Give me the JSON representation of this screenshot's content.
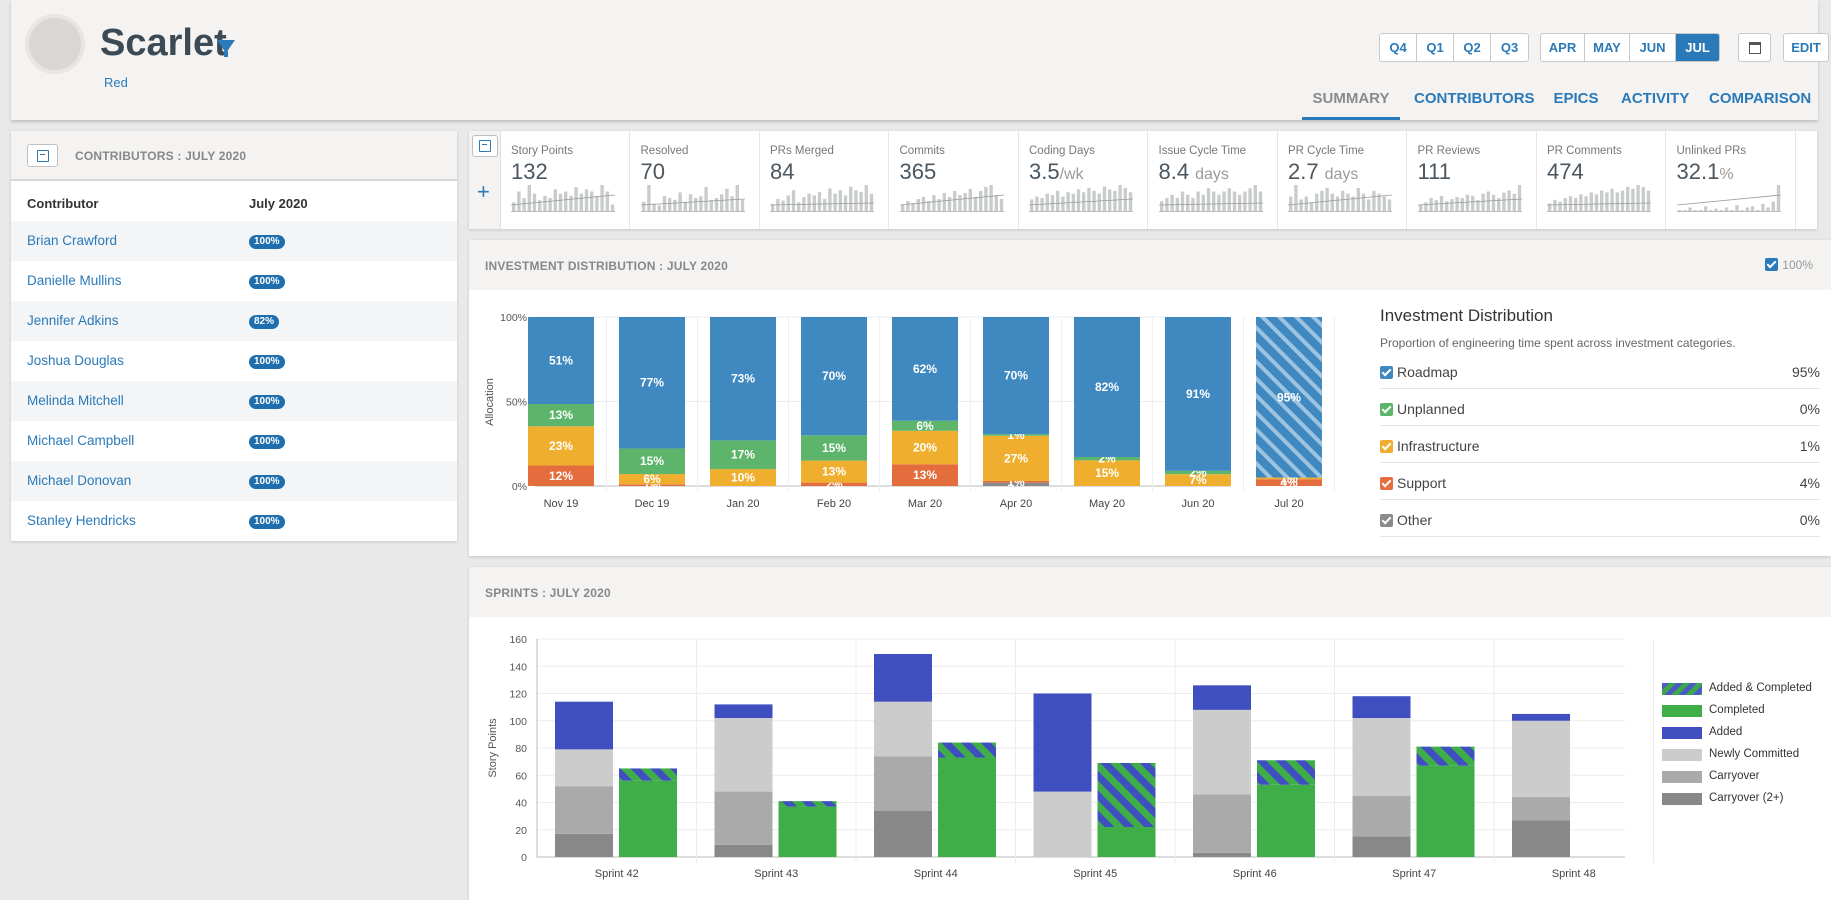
{
  "header": {
    "team_name": "Scarlet",
    "team_sub": "Red",
    "quarters": [
      "Q4",
      "Q1",
      "Q2",
      "Q3"
    ],
    "months": [
      "APR",
      "MAY",
      "JUN",
      "JUL"
    ],
    "active_month": "JUL",
    "edit_label": "EDIT",
    "tabs": [
      "SUMMARY",
      "CONTRIBUTORS",
      "EPICS",
      "ACTIVITY",
      "COMPARISON"
    ],
    "active_tab": "SUMMARY"
  },
  "contributors": {
    "title": "CONTRIBUTORS : JULY 2020",
    "col_name": "Contributor",
    "col_month": "July 2020",
    "rows": [
      {
        "name": "Brian Crawford",
        "pct": "100%"
      },
      {
        "name": "Danielle Mullins",
        "pct": "100%"
      },
      {
        "name": "Jennifer Adkins",
        "pct": "82%"
      },
      {
        "name": "Joshua Douglas",
        "pct": "100%"
      },
      {
        "name": "Melinda Mitchell",
        "pct": "100%"
      },
      {
        "name": "Michael Campbell",
        "pct": "100%"
      },
      {
        "name": "Michael Donovan",
        "pct": "100%"
      },
      {
        "name": "Stanley Hendricks",
        "pct": "100%"
      }
    ]
  },
  "metrics": [
    {
      "label": "Story Points",
      "value": "132",
      "unit": ""
    },
    {
      "label": "Resolved",
      "value": "70",
      "unit": ""
    },
    {
      "label": "PRs Merged",
      "value": "84",
      "unit": ""
    },
    {
      "label": "Commits",
      "value": "365",
      "unit": ""
    },
    {
      "label": "Coding Days",
      "value": "3.5",
      "unit": "/wk"
    },
    {
      "label": "Issue Cycle Time",
      "value": "8.4",
      "unit": "days"
    },
    {
      "label": "PR Cycle Time",
      "value": "2.7",
      "unit": "days"
    },
    {
      "label": "PR Reviews",
      "value": "111",
      "unit": ""
    },
    {
      "label": "PR Comments",
      "value": "474",
      "unit": ""
    },
    {
      "label": "Unlinked PRs",
      "value": "32.1",
      "unit": "%"
    }
  ],
  "investment": {
    "title": "INVESTMENT DISTRIBUTION : JULY 2020",
    "toggle_label": "100%",
    "legend_title": "Investment Distribution",
    "legend_sub": "Proportion of engineering time spent across investment categories.",
    "legend": [
      {
        "name": "Roadmap",
        "value": "95%",
        "color": "#3f88c0"
      },
      {
        "name": "Unplanned",
        "value": "0%",
        "color": "#5cb56a"
      },
      {
        "name": "Infrastructure",
        "value": "1%",
        "color": "#efae2e"
      },
      {
        "name": "Support",
        "value": "4%",
        "color": "#e36d3c"
      },
      {
        "name": "Other",
        "value": "0%",
        "color": "#8a8a8a"
      }
    ]
  },
  "sprints": {
    "title": "SPRINTS : JULY 2020",
    "legend": [
      {
        "name": "Added & Completed",
        "color": "hatch"
      },
      {
        "name": "Completed",
        "color": "#3fae49"
      },
      {
        "name": "Added",
        "color": "#3f4fbf"
      },
      {
        "name": "Newly Committed",
        "color": "#cccccc"
      },
      {
        "name": "Carryover",
        "color": "#aaaaaa"
      },
      {
        "name": "Carryover (2+)",
        "color": "#888888"
      }
    ]
  },
  "chart_data": [
    {
      "type": "bar",
      "stacked": true,
      "title": "INVESTMENT DISTRIBUTION : JULY 2020",
      "ylabel": "Allocation",
      "ylim": [
        0,
        100
      ],
      "yticks": [
        "0%",
        "50%",
        "100%"
      ],
      "categories": [
        "Nov 19",
        "Dec 19",
        "Jan 20",
        "Feb 20",
        "Mar 20",
        "Apr 20",
        "May 20",
        "Jun 20",
        "Jul 20"
      ],
      "series": [
        {
          "name": "Other",
          "color": "#8a8a8a",
          "values": [
            0,
            0,
            0,
            0,
            0,
            2,
            0,
            0,
            0
          ]
        },
        {
          "name": "Support",
          "color": "#e36d3c",
          "values": [
            12,
            1,
            0,
            2,
            13,
            1,
            0,
            0,
            4
          ]
        },
        {
          "name": "Infrastructure",
          "color": "#efae2e",
          "values": [
            23,
            6,
            10,
            13,
            20,
            27,
            15,
            7,
            1
          ]
        },
        {
          "name": "Unplanned",
          "color": "#5cb56a",
          "values": [
            13,
            15,
            17,
            15,
            6,
            1,
            2,
            2,
            0
          ]
        },
        {
          "name": "Roadmap",
          "color": "#3f88c0",
          "values": [
            51,
            77,
            73,
            70,
            62,
            70,
            82,
            91,
            95
          ]
        }
      ],
      "labels": [
        [
          "",
          "12%",
          "23%",
          "13%",
          "51%"
        ],
        [
          "",
          "1%",
          "6%",
          "15%",
          "77%"
        ],
        [
          "",
          "",
          "10%",
          "17%",
          "73%"
        ],
        [
          "",
          "2%",
          "13%",
          "15%",
          "70%"
        ],
        [
          "",
          "13%",
          "20%",
          "6%",
          "62%"
        ],
        [
          "",
          "1%",
          "27%",
          "1%",
          "70%"
        ],
        [
          "",
          "",
          "15%",
          "2%",
          "82%"
        ],
        [
          "",
          "",
          "7%",
          "2%",
          "91%"
        ],
        [
          "",
          "4%",
          "1%",
          "",
          "95%"
        ]
      ],
      "hatched_last": true
    },
    {
      "type": "bar",
      "stacked": true,
      "title": "SPRINTS : JULY 2020",
      "ylabel": "Story Points",
      "ylim": [
        0,
        160
      ],
      "yticks": [
        0,
        20,
        40,
        60,
        80,
        100,
        120,
        140,
        160
      ],
      "categories": [
        "Sprint 42",
        "Sprint 43",
        "Sprint 44",
        "Sprint 45",
        "Sprint 46",
        "Sprint 47",
        "Sprint 48"
      ],
      "committed": [
        {
          "carryover2": 17,
          "carryover": 35,
          "newly": 27,
          "added": 35
        },
        {
          "carryover2": 9,
          "carryover": 39,
          "newly": 54,
          "added": 10
        },
        {
          "carryover2": 34,
          "carryover": 40,
          "newly": 40,
          "added": 35
        },
        {
          "carryover2": 0,
          "carryover": 0,
          "newly": 48,
          "added": 72
        },
        {
          "carryover2": 3,
          "carryover": 43,
          "newly": 62,
          "added": 18
        },
        {
          "carryover2": 15,
          "carryover": 30,
          "newly": 57,
          "added": 16
        },
        {
          "carryover2": 27,
          "carryover": 17,
          "newly": 56,
          "added": 5
        }
      ],
      "completed": [
        {
          "completed": 56,
          "added_completed": 9
        },
        {
          "completed": 37,
          "added_completed": 4
        },
        {
          "completed": 73,
          "added_completed": 11
        },
        {
          "completed": 22,
          "added_completed": 47
        },
        {
          "completed": 53,
          "added_completed": 18
        },
        {
          "completed": 67,
          "added_completed": 14
        },
        {
          "completed": 0,
          "added_completed": 0
        }
      ]
    }
  ]
}
